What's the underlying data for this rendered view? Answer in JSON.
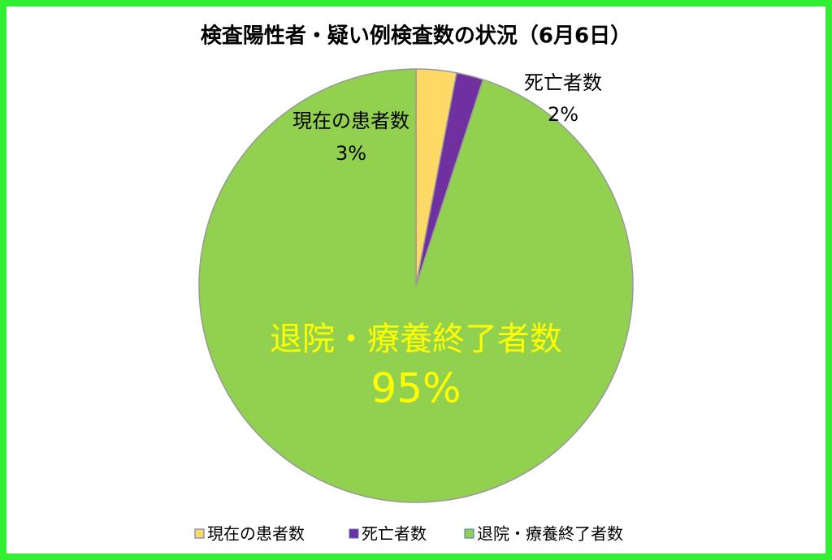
{
  "chart_data": {
    "type": "pie",
    "title": "検査陽性者・疑い例検査数の状況（6月6日）",
    "categories": [
      "現在の患者数",
      "死亡者数",
      "退院・療養終了者数"
    ],
    "values": [
      3,
      2,
      95
    ],
    "value_labels": [
      "3%",
      "2%",
      "95%"
    ],
    "colors": [
      "#ffd966",
      "#7030a0",
      "#92d050"
    ]
  }
}
